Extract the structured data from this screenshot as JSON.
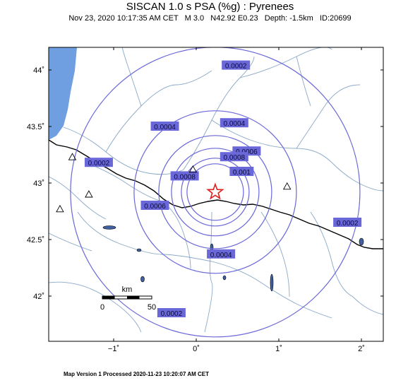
{
  "title": "SISCAN 1.0 s PSA (%g) : Pyrenees",
  "subtitle": "Nov 23, 2020 10:17:35 AM CET   M 3.0   N42.92 E0.23   Depth: -1.5km   ID:20699",
  "footer": "Map Version 1 Processed 2020-11-23 10:20:07 AM CET",
  "axes": {
    "lat_ticks": [
      {
        "value": 44,
        "label": "44˚"
      },
      {
        "value": 43.5,
        "label": "43.5˚"
      },
      {
        "value": 43,
        "label": "43˚"
      },
      {
        "value": 42.5,
        "label": "42.5˚"
      },
      {
        "value": 42,
        "label": "42˚"
      }
    ],
    "lon_ticks": [
      {
        "value": -1,
        "label": "−1˚"
      },
      {
        "value": 0,
        "label": "0˚"
      },
      {
        "value": 1,
        "label": "1˚"
      },
      {
        "value": 2,
        "label": "2˚"
      }
    ]
  },
  "epicenter": {
    "lat": 42.92,
    "lon": 0.23,
    "symbol": "star",
    "color": "#e02020"
  },
  "contour_color": "#6a67d8",
  "contours": [
    {
      "value": "0.0002"
    },
    {
      "value": "0.0004"
    },
    {
      "value": "0.0006"
    },
    {
      "value": "0.0008"
    },
    {
      "value": "0.001"
    }
  ],
  "contour_labels": [
    {
      "text": "0.0002",
      "lon": 0.48,
      "lat": 44.04
    },
    {
      "text": "0.0002",
      "lon": -1.18,
      "lat": 43.18
    },
    {
      "text": "0.0002",
      "lon": 1.83,
      "lat": 42.65
    },
    {
      "text": "0.0002",
      "lon": -0.3,
      "lat": 41.85
    },
    {
      "text": "0.0004",
      "lon": -0.38,
      "lat": 43.5
    },
    {
      "text": "0.0004",
      "lon": 0.46,
      "lat": 43.53
    },
    {
      "text": "0.0004",
      "lon": 0.3,
      "lat": 42.37
    },
    {
      "text": "0.0006",
      "lon": 0.61,
      "lat": 43.28
    },
    {
      "text": "0.0006",
      "lon": -0.5,
      "lat": 42.8
    },
    {
      "text": "0.0008",
      "lon": 0.46,
      "lat": 43.23
    },
    {
      "text": "0.0008",
      "lon": -0.14,
      "lat": 43.06
    },
    {
      "text": "0.001",
      "lon": 0.55,
      "lat": 43.1
    }
  ],
  "stations": [
    {
      "lon": -1.5,
      "lat": 43.23
    },
    {
      "lon": -1.3,
      "lat": 42.9
    },
    {
      "lon": -1.65,
      "lat": 42.77
    },
    {
      "lon": -0.04,
      "lat": 43.12
    },
    {
      "lon": 1.1,
      "lat": 42.97
    }
  ],
  "scale_bar": {
    "unit_label": "km",
    "labels": [
      "0",
      "50"
    ]
  },
  "colors": {
    "sea": "#6f9fe0",
    "rivers": "#8aa8c8",
    "border": "#000000"
  }
}
